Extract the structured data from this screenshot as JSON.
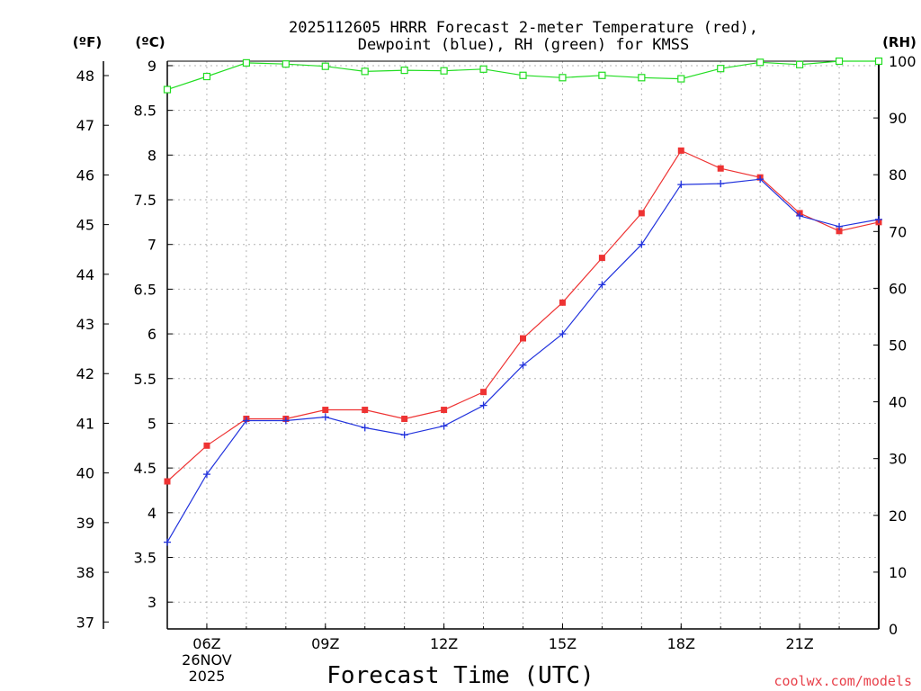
{
  "chart_data": {
    "type": "line",
    "title": "2025112605 HRRR Forecast 2-meter Temperature (red),",
    "subtitle": "Dewpoint (blue), RH (green) for KMSS",
    "xlabel": "Forecast Time (UTC)",
    "watermark": "coolwx.com/models",
    "left_outer_unit": "(ºF)",
    "left_inner_unit": "(ºC)",
    "right_unit": "(RH)",
    "x": [
      5,
      6,
      7,
      8,
      9,
      10,
      11,
      12,
      13,
      14,
      15,
      16,
      17,
      18,
      19,
      20,
      21,
      22,
      23
    ],
    "x_ticks": [
      {
        "x": 6,
        "lines": [
          "06Z",
          "26NOV",
          "2025"
        ]
      },
      {
        "x": 9,
        "lines": [
          "09Z"
        ]
      },
      {
        "x": 12,
        "lines": [
          "12Z"
        ]
      },
      {
        "x": 15,
        "lines": [
          "15Z"
        ]
      },
      {
        "x": 18,
        "lines": [
          "18Z"
        ]
      },
      {
        "x": 21,
        "lines": [
          "21Z"
        ]
      }
    ],
    "xlim": [
      5,
      23
    ],
    "ylim_c": [
      2.7,
      9.05
    ],
    "ylim_rh": [
      0,
      100
    ],
    "celsius_ticks": [
      3,
      3.5,
      4,
      4.5,
      5,
      5.5,
      6,
      6.5,
      7,
      7.5,
      8,
      8.5,
      9
    ],
    "fahrenheit_ticks": [
      37,
      38,
      39,
      40,
      41,
      42,
      43,
      44,
      45,
      46,
      47,
      48
    ],
    "rh_ticks": [
      0,
      10,
      20,
      30,
      40,
      50,
      60,
      70,
      80,
      90,
      100
    ],
    "series": [
      {
        "name": "Temperature (red)",
        "axis": "celsius",
        "color": "#ee3333",
        "marker": "filled-square",
        "values": [
          4.35,
          4.75,
          5.05,
          5.05,
          5.15,
          5.15,
          5.05,
          5.15,
          5.35,
          5.95,
          6.35,
          6.85,
          7.35,
          8.05,
          7.85,
          7.75,
          7.35,
          7.15,
          7.25
        ]
      },
      {
        "name": "Dewpoint (blue)",
        "axis": "celsius",
        "color": "#2233dd",
        "marker": "plus",
        "values": [
          3.67,
          4.43,
          5.03,
          5.03,
          5.07,
          4.95,
          4.87,
          4.97,
          5.2,
          5.65,
          6.0,
          6.55,
          7.0,
          7.67,
          7.68,
          7.73,
          7.32,
          7.2,
          7.28
        ]
      },
      {
        "name": "RH (green)",
        "axis": "rh",
        "color": "#22dd22",
        "marker": "open-square",
        "values": [
          95,
          97.3,
          99.7,
          99.5,
          99.1,
          98.2,
          98.4,
          98.3,
          98.6,
          97.5,
          97.1,
          97.5,
          97.1,
          96.9,
          98.7,
          99.8,
          99.4,
          100.3,
          100
        ]
      }
    ]
  }
}
